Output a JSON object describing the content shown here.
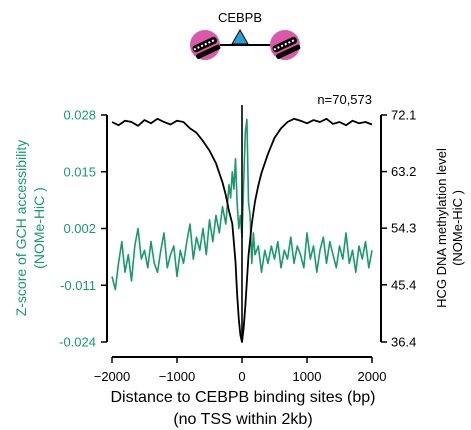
{
  "chart_data": {
    "type": "line",
    "title": "CEBPB",
    "annotation": "n=70,573",
    "xlabel": "Distance to CEBPB binding sites (bp)",
    "xlabel_sub": "(no TSS within 2kb)",
    "ylabel_left": "Z-score of GCH accessibility",
    "ylabel_left_sub": "(NOMe-HiC )",
    "ylabel_right": "HCG DNA methylation level",
    "ylabel_right_sub": "(NOMe-HiC )",
    "xlim": [
      -2000,
      2000
    ],
    "ylim_left": [
      -0.024,
      0.028
    ],
    "ylim_right": [
      36.4,
      72.1
    ],
    "x_ticks": [
      -2000,
      -1000,
      0,
      1000,
      2000
    ],
    "x_tick_labels": [
      "−2000",
      "−1000",
      "0",
      "1000",
      "2000"
    ],
    "y_left_ticks": [
      0.028,
      0.015,
      0.002,
      -0.011,
      -0.024
    ],
    "y_left_tick_labels": [
      "0.028",
      "0.015",
      "0.002",
      "-0.011",
      "-0.024"
    ],
    "y_right_ticks": [
      72.1,
      63.2,
      54.3,
      45.4,
      36.4
    ],
    "y_right_tick_labels": [
      "72.1",
      "63.2",
      "54.3",
      "45.4",
      "36.4"
    ],
    "grid": false,
    "colors": {
      "accessibility": "#1a9a6c",
      "methylation": "#000000",
      "motif_triangle": "#2a9fd6",
      "nucleosome": "#d85aa6"
    },
    "series": [
      {
        "axis": "left",
        "x": [
          -2000,
          -1950,
          -1900,
          -1850,
          -1800,
          -1750,
          -1700,
          -1650,
          -1600,
          -1550,
          -1500,
          -1450,
          -1400,
          -1350,
          -1300,
          -1250,
          -1200,
          -1150,
          -1100,
          -1050,
          -1000,
          -950,
          -900,
          -850,
          -800,
          -750,
          -700,
          -650,
          -600,
          -550,
          -500,
          -450,
          -400,
          -350,
          -300,
          -250,
          -200,
          -175,
          -150,
          -125,
          -100,
          -75,
          -50,
          -25,
          0,
          25,
          50,
          75,
          100,
          125,
          150,
          175,
          200,
          250,
          300,
          350,
          400,
          450,
          500,
          550,
          600,
          650,
          700,
          750,
          800,
          850,
          900,
          950,
          1000,
          1050,
          1100,
          1150,
          1200,
          1250,
          1300,
          1350,
          1400,
          1450,
          1500,
          1550,
          1600,
          1650,
          1700,
          1750,
          1800,
          1850,
          1900,
          1950,
          2000
        ],
        "y": [
          -0.009,
          -0.012,
          -0.006,
          -0.001,
          -0.008,
          -0.004,
          -0.01,
          -0.002,
          0.002,
          -0.005,
          -0.003,
          -0.007,
          -0.001,
          -0.006,
          -0.008,
          -0.003,
          0.001,
          -0.007,
          -0.004,
          -0.002,
          -0.009,
          -0.003,
          -0.006,
          -0.001,
          0.003,
          -0.005,
          0.0,
          -0.003,
          0.002,
          -0.004,
          0.004,
          -0.001,
          0.005,
          0.001,
          0.007,
          0.003,
          0.012,
          0.009,
          0.015,
          0.011,
          0.018,
          0.008,
          0.002,
          0.005,
          0.0,
          0.012,
          0.024,
          0.027,
          0.008,
          0.005,
          -0.006,
          0.001,
          -0.004,
          -0.002,
          -0.008,
          -0.003,
          -0.006,
          -0.002,
          -0.005,
          -0.001,
          -0.007,
          -0.003,
          -0.005,
          0.0,
          -0.006,
          -0.002,
          -0.004,
          -0.007,
          0.001,
          -0.005,
          -0.002,
          -0.008,
          -0.003,
          0.0,
          -0.006,
          -0.001,
          -0.004,
          -0.007,
          -0.002,
          -0.005,
          0.001,
          -0.006,
          -0.003,
          -0.008,
          -0.002,
          -0.005,
          -0.001,
          -0.007,
          -0.003
        ]
      },
      {
        "axis": "right",
        "x": [
          -2000,
          -1900,
          -1800,
          -1700,
          -1600,
          -1500,
          -1400,
          -1300,
          -1200,
          -1100,
          -1000,
          -900,
          -800,
          -700,
          -600,
          -500,
          -400,
          -300,
          -250,
          -200,
          -150,
          -100,
          -75,
          -50,
          -25,
          0,
          25,
          50,
          75,
          100,
          150,
          200,
          250,
          300,
          400,
          500,
          600,
          700,
          800,
          900,
          1000,
          1100,
          1200,
          1300,
          1400,
          1500,
          1600,
          1700,
          1800,
          1900,
          2000
        ],
        "y": [
          71.0,
          70.5,
          71.2,
          71.0,
          70.4,
          71.3,
          70.8,
          71.5,
          71.0,
          70.6,
          71.2,
          71.0,
          70.0,
          69.3,
          68.0,
          66.5,
          64.5,
          61.5,
          59.5,
          57.0,
          55.0,
          49.0,
          44.0,
          40.0,
          37.5,
          36.4,
          38.5,
          42.0,
          46.0,
          50.0,
          55.0,
          58.5,
          61.0,
          63.0,
          66.0,
          68.5,
          70.0,
          71.0,
          71.5,
          71.2,
          70.8,
          71.3,
          71.0,
          71.5,
          70.7,
          71.0,
          70.5,
          71.2,
          70.8,
          71.0,
          70.6
        ]
      }
    ]
  }
}
